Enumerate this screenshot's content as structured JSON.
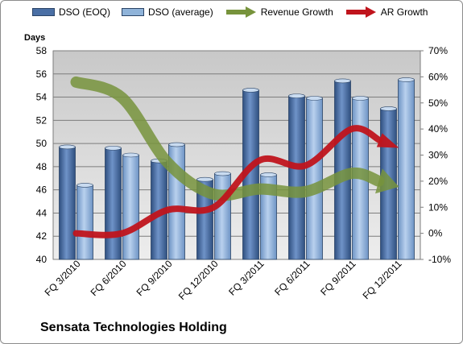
{
  "chart_data": {
    "type": "bar",
    "title": "Sensata Technologies Holding",
    "ylabel": "Days",
    "ylim": [
      40,
      58
    ],
    "y2lim": [
      -10,
      70
    ],
    "y_ticks": [
      "40",
      "42",
      "44",
      "46",
      "48",
      "50",
      "52",
      "54",
      "56",
      "58"
    ],
    "y2_ticks": [
      "-10%",
      "0%",
      "10%",
      "20%",
      "30%",
      "40%",
      "50%",
      "60%",
      "70%"
    ],
    "categories": [
      "FQ 3/2010",
      "FQ 6/2010",
      "FQ 9/2010",
      "FQ 12/2010",
      "FQ 3/2011",
      "FQ 6/2011",
      "FQ 9/2011",
      "FQ 12/2011"
    ],
    "series": [
      {
        "name": "DSO (EOQ)",
        "type": "bar",
        "axis": "left",
        "values": [
          49.7,
          49.6,
          48.5,
          46.9,
          54.6,
          54.1,
          55.4,
          53.0
        ]
      },
      {
        "name": "DSO (average)",
        "type": "bar",
        "axis": "left",
        "values": [
          46.4,
          49.0,
          49.9,
          47.4,
          47.3,
          53.9,
          53.9,
          55.5
        ]
      },
      {
        "name": "Revenue Growth",
        "type": "line",
        "axis": "right",
        "values": [
          58,
          52,
          27,
          15,
          17,
          16,
          23,
          18
        ]
      },
      {
        "name": "AR Growth",
        "type": "line",
        "axis": "right",
        "values": [
          0,
          0,
          9,
          10,
          28,
          26,
          40,
          33
        ]
      }
    ],
    "colors": {
      "dso_eoq": "#4a6fa5",
      "dso_avg": "#8fb3d9",
      "revenue_growth": "#77933c",
      "ar_growth": "#c0141c"
    },
    "grid": true,
    "legend_position": "top"
  }
}
